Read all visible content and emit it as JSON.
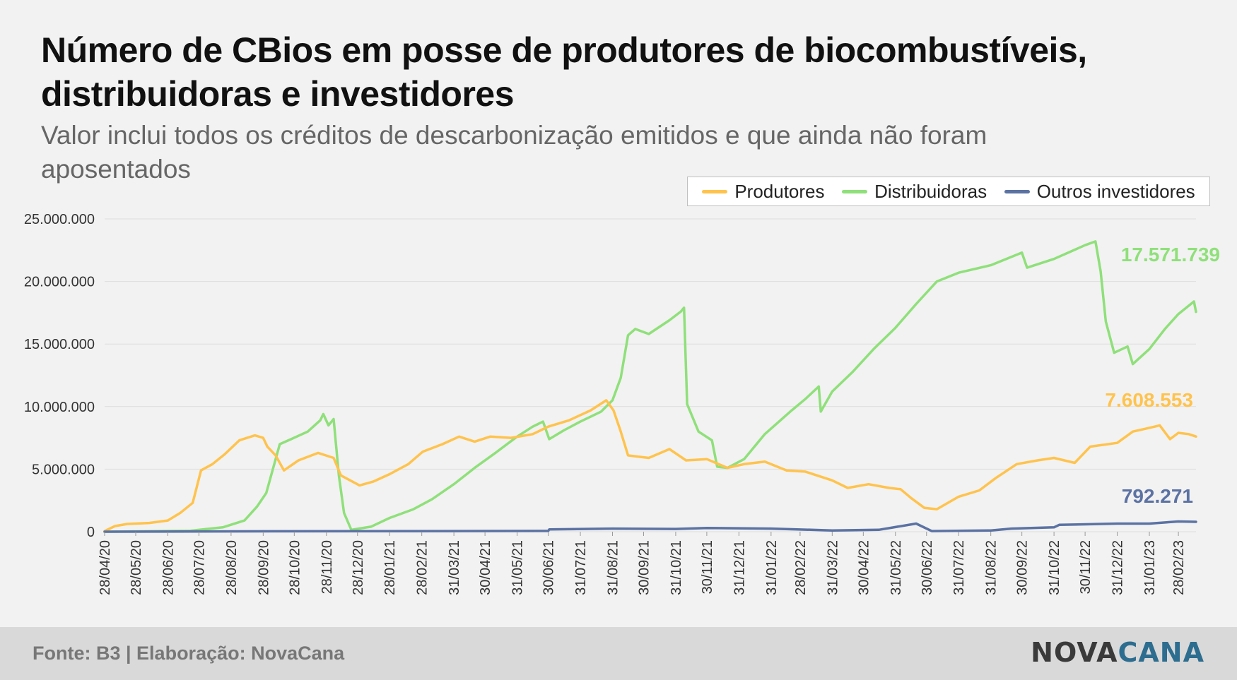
{
  "title": "Número de CBios em posse de produtores de biocombustíveis, distribuidoras e investidores",
  "subtitle": "Valor inclui todos os créditos de descarbonização emitidos e que ainda não foram aposentados",
  "footer": {
    "source": "Fonte: B3 | Elaboração: NovaCana",
    "brand_part1": "NOVA",
    "brand_part2": "CANA"
  },
  "colors": {
    "produtores": "#ffc34d",
    "distribuidoras": "#8fe07a",
    "outros": "#5b72a3",
    "grid": "#dddddd",
    "axis_text": "#333333"
  },
  "chart_data": {
    "type": "line",
    "title": "Número de CBios em posse de produtores de biocombustíveis, distribuidoras e investidores",
    "subtitle": "Valor inclui todos os créditos de descarbonização emitidos e que ainda não foram aposentados",
    "legend_position": "top-right",
    "grid": true,
    "ylim": [
      0,
      25000000
    ],
    "xlim": [
      "2020-04-28",
      "2023-03-17"
    ],
    "y_ticks": [
      0,
      5000000,
      10000000,
      15000000,
      20000000,
      25000000
    ],
    "y_tick_labels": [
      "0",
      "5.000.000",
      "10.000.000",
      "15.000.000",
      "20.000.000",
      "25.000.000"
    ],
    "x_ticks": [
      "2020-04-28",
      "2020-05-28",
      "2020-06-28",
      "2020-07-28",
      "2020-08-28",
      "2020-09-28",
      "2020-10-28",
      "2020-11-28",
      "2020-12-28",
      "2021-01-28",
      "2021-02-28",
      "2021-03-31",
      "2021-04-30",
      "2021-05-31",
      "2021-06-30",
      "2021-07-31",
      "2021-08-31",
      "2021-09-30",
      "2021-10-31",
      "2021-11-30",
      "2021-12-31",
      "2022-01-31",
      "2022-02-28",
      "2022-03-31",
      "2022-04-30",
      "2022-05-31",
      "2022-06-30",
      "2022-07-31",
      "2022-08-31",
      "2022-09-30",
      "2022-10-31",
      "2022-11-30",
      "2022-12-31",
      "2023-01-31",
      "2023-02-28"
    ],
    "x_tick_labels": [
      "28/04/20",
      "28/05/20",
      "28/06/20",
      "28/07/20",
      "28/08/20",
      "28/09/20",
      "28/10/20",
      "28/11/20",
      "28/12/20",
      "28/01/21",
      "28/02/21",
      "31/03/21",
      "30/04/21",
      "31/05/21",
      "30/06/21",
      "31/07/21",
      "31/08/21",
      "30/09/21",
      "31/10/21",
      "30/11/21",
      "31/12/21",
      "31/01/22",
      "28/02/22",
      "31/03/22",
      "30/04/22",
      "31/05/22",
      "30/06/22",
      "31/07/22",
      "31/08/22",
      "30/09/22",
      "31/10/22",
      "30/11/22",
      "31/12/22",
      "31/01/23",
      "28/02/23"
    ],
    "series": [
      {
        "name": "Produtores",
        "color": "#ffc34d",
        "end_label": "7.608.553",
        "points": [
          [
            "2020-04-28",
            50000
          ],
          [
            "2020-05-08",
            450000
          ],
          [
            "2020-05-20",
            620000
          ],
          [
            "2020-06-10",
            700000
          ],
          [
            "2020-06-28",
            900000
          ],
          [
            "2020-07-10",
            1500000
          ],
          [
            "2020-07-22",
            2300000
          ],
          [
            "2020-07-30",
            4900000
          ],
          [
            "2020-08-10",
            5400000
          ],
          [
            "2020-08-22",
            6200000
          ],
          [
            "2020-09-05",
            7300000
          ],
          [
            "2020-09-20",
            7700000
          ],
          [
            "2020-09-28",
            7500000
          ],
          [
            "2020-10-02",
            6800000
          ],
          [
            "2020-10-10",
            6100000
          ],
          [
            "2020-10-18",
            4900000
          ],
          [
            "2020-11-01",
            5700000
          ],
          [
            "2020-11-20",
            6300000
          ],
          [
            "2020-12-05",
            5900000
          ],
          [
            "2020-12-12",
            4500000
          ],
          [
            "2020-12-30",
            3700000
          ],
          [
            "2021-01-12",
            4000000
          ],
          [
            "2021-01-28",
            4600000
          ],
          [
            "2021-02-15",
            5400000
          ],
          [
            "2021-03-01",
            6400000
          ],
          [
            "2021-03-20",
            7000000
          ],
          [
            "2021-04-05",
            7600000
          ],
          [
            "2021-04-20",
            7200000
          ],
          [
            "2021-05-05",
            7600000
          ],
          [
            "2021-05-25",
            7500000
          ],
          [
            "2021-06-15",
            7800000
          ],
          [
            "2021-06-30",
            8400000
          ],
          [
            "2021-07-20",
            8900000
          ],
          [
            "2021-08-10",
            9700000
          ],
          [
            "2021-08-25",
            10500000
          ],
          [
            "2021-09-01",
            9700000
          ],
          [
            "2021-09-08",
            8000000
          ],
          [
            "2021-09-15",
            6100000
          ],
          [
            "2021-10-05",
            5900000
          ],
          [
            "2021-10-25",
            6600000
          ],
          [
            "2021-11-10",
            5700000
          ],
          [
            "2021-11-30",
            5800000
          ],
          [
            "2021-12-20",
            5100000
          ],
          [
            "2022-01-05",
            5400000
          ],
          [
            "2022-01-25",
            5600000
          ],
          [
            "2022-02-15",
            4900000
          ],
          [
            "2022-03-05",
            4800000
          ],
          [
            "2022-03-31",
            4100000
          ],
          [
            "2022-04-15",
            3500000
          ],
          [
            "2022-05-05",
            3800000
          ],
          [
            "2022-05-25",
            3500000
          ],
          [
            "2022-06-05",
            3400000
          ],
          [
            "2022-06-15",
            2700000
          ],
          [
            "2022-06-28",
            1900000
          ],
          [
            "2022-07-10",
            1800000
          ],
          [
            "2022-07-31",
            2800000
          ],
          [
            "2022-08-20",
            3300000
          ],
          [
            "2022-09-05",
            4300000
          ],
          [
            "2022-09-25",
            5400000
          ],
          [
            "2022-10-15",
            5700000
          ],
          [
            "2022-10-31",
            5900000
          ],
          [
            "2022-11-20",
            5500000
          ],
          [
            "2022-12-05",
            6800000
          ],
          [
            "2022-12-31",
            7100000
          ],
          [
            "2023-01-15",
            8000000
          ],
          [
            "2023-01-31",
            8300000
          ],
          [
            "2023-02-10",
            8500000
          ],
          [
            "2023-02-20",
            7400000
          ],
          [
            "2023-02-28",
            7900000
          ],
          [
            "2023-03-10",
            7800000
          ],
          [
            "2023-03-17",
            7608553
          ]
        ]
      },
      {
        "name": "Distribuidoras",
        "color": "#8fe07a",
        "end_label": "17.571.739",
        "points": [
          [
            "2020-04-28",
            0
          ],
          [
            "2020-07-20",
            80000
          ],
          [
            "2020-08-20",
            350000
          ],
          [
            "2020-09-10",
            900000
          ],
          [
            "2020-09-22",
            2000000
          ],
          [
            "2020-10-01",
            3100000
          ],
          [
            "2020-10-08",
            5200000
          ],
          [
            "2020-10-14",
            7000000
          ],
          [
            "2020-10-25",
            7400000
          ],
          [
            "2020-11-10",
            8000000
          ],
          [
            "2020-11-22",
            8900000
          ],
          [
            "2020-11-25",
            9400000
          ],
          [
            "2020-11-30",
            8500000
          ],
          [
            "2020-12-05",
            9000000
          ],
          [
            "2020-12-10",
            4500000
          ],
          [
            "2020-12-15",
            1500000
          ],
          [
            "2020-12-22",
            150000
          ],
          [
            "2021-01-10",
            400000
          ],
          [
            "2021-01-28",
            1100000
          ],
          [
            "2021-02-20",
            1800000
          ],
          [
            "2021-03-10",
            2600000
          ],
          [
            "2021-03-31",
            3800000
          ],
          [
            "2021-04-20",
            5100000
          ],
          [
            "2021-05-10",
            6300000
          ],
          [
            "2021-05-31",
            7600000
          ],
          [
            "2021-06-15",
            8400000
          ],
          [
            "2021-06-25",
            8800000
          ],
          [
            "2021-07-01",
            7400000
          ],
          [
            "2021-07-15",
            8100000
          ],
          [
            "2021-07-31",
            8800000
          ],
          [
            "2021-08-20",
            9600000
          ],
          [
            "2021-08-31",
            10500000
          ],
          [
            "2021-09-08",
            12300000
          ],
          [
            "2021-09-15",
            15700000
          ],
          [
            "2021-09-22",
            16200000
          ],
          [
            "2021-10-05",
            15800000
          ],
          [
            "2021-10-25",
            16900000
          ],
          [
            "2021-11-05",
            17600000
          ],
          [
            "2021-11-08",
            17900000
          ],
          [
            "2021-11-11",
            10200000
          ],
          [
            "2021-11-22",
            8000000
          ],
          [
            "2021-12-05",
            7300000
          ],
          [
            "2021-12-10",
            5200000
          ],
          [
            "2021-12-20",
            5100000
          ],
          [
            "2022-01-05",
            5800000
          ],
          [
            "2022-01-25",
            7800000
          ],
          [
            "2022-02-20",
            9700000
          ],
          [
            "2022-03-05",
            10600000
          ],
          [
            "2022-03-18",
            11600000
          ],
          [
            "2022-03-20",
            9600000
          ],
          [
            "2022-03-31",
            11200000
          ],
          [
            "2022-04-20",
            12800000
          ],
          [
            "2022-05-10",
            14600000
          ],
          [
            "2022-05-31",
            16300000
          ],
          [
            "2022-06-20",
            18200000
          ],
          [
            "2022-07-10",
            20000000
          ],
          [
            "2022-07-31",
            20700000
          ],
          [
            "2022-08-31",
            21300000
          ],
          [
            "2022-09-30",
            22300000
          ],
          [
            "2022-10-05",
            21100000
          ],
          [
            "2022-10-31",
            21800000
          ],
          [
            "2022-11-30",
            22900000
          ],
          [
            "2022-12-10",
            23200000
          ],
          [
            "2022-12-15",
            20800000
          ],
          [
            "2022-12-20",
            16800000
          ],
          [
            "2022-12-28",
            14300000
          ],
          [
            "2023-01-10",
            14800000
          ],
          [
            "2023-01-15",
            13400000
          ],
          [
            "2023-01-31",
            14600000
          ],
          [
            "2023-02-15",
            16200000
          ],
          [
            "2023-02-28",
            17400000
          ],
          [
            "2023-03-15",
            18400000
          ],
          [
            "2023-03-17",
            17571739
          ]
        ]
      },
      {
        "name": "Outros investidores",
        "color": "#5b72a3",
        "end_label": "792.271",
        "points": [
          [
            "2020-04-28",
            0
          ],
          [
            "2020-09-01",
            30000
          ],
          [
            "2021-06-30",
            60000
          ],
          [
            "2021-07-01",
            180000
          ],
          [
            "2021-08-31",
            250000
          ],
          [
            "2021-10-31",
            220000
          ],
          [
            "2021-11-30",
            300000
          ],
          [
            "2022-01-31",
            250000
          ],
          [
            "2022-03-31",
            100000
          ],
          [
            "2022-05-15",
            150000
          ],
          [
            "2022-06-20",
            650000
          ],
          [
            "2022-07-05",
            50000
          ],
          [
            "2022-08-31",
            100000
          ],
          [
            "2022-09-20",
            250000
          ],
          [
            "2022-10-31",
            350000
          ],
          [
            "2022-11-05",
            550000
          ],
          [
            "2022-12-31",
            650000
          ],
          [
            "2023-01-31",
            650000
          ],
          [
            "2023-02-28",
            820000
          ],
          [
            "2023-03-17",
            792271
          ]
        ]
      }
    ]
  }
}
